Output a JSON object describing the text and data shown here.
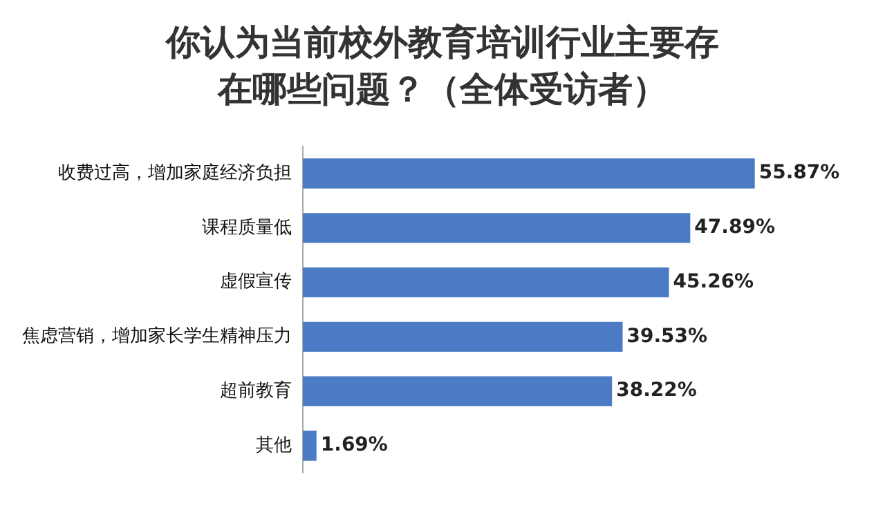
{
  "chart_data": {
    "type": "bar",
    "orientation": "horizontal",
    "title": "你认为当前校外教育培训行业主要存在哪些问题？（全体受访者）",
    "categories": [
      "收费过高，增加家庭经济负担",
      "课程质量低",
      "虚假宣传",
      "焦虑营销，增加家长学生精神压力",
      "超前教育",
      "其他"
    ],
    "values": [
      55.87,
      47.89,
      45.26,
      39.53,
      38.22,
      1.69
    ],
    "value_labels": [
      "55.87%",
      "47.89%",
      "45.26%",
      "39.53%",
      "38.22%",
      "1.69%"
    ],
    "color": "#4a7bc4",
    "legend": false,
    "tick_labels": "y"
  }
}
